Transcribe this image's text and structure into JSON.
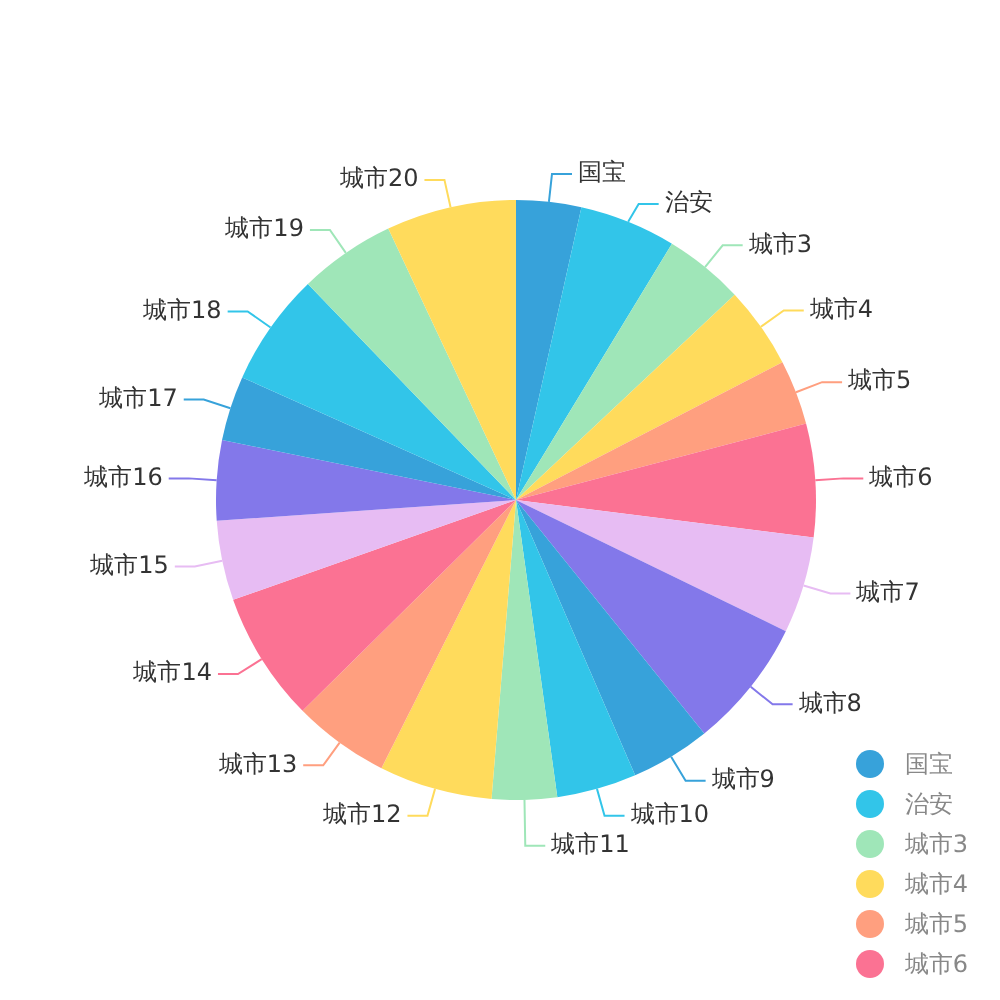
{
  "chart_data": {
    "type": "pie",
    "categories": [
      "国宝",
      "治安",
      "城市3",
      "城市4",
      "城市5",
      "城市6",
      "城市7",
      "城市8",
      "城市9",
      "城市10",
      "城市11",
      "城市12",
      "城市13",
      "城市14",
      "城市15",
      "城市16",
      "城市17",
      "城市18",
      "城市19",
      "城市20"
    ],
    "values": [
      3.5,
      5.2,
      4.3,
      4.4,
      3.5,
      6.1,
      5.2,
      7.0,
      4.3,
      4.3,
      3.5,
      6.1,
      5.2,
      7.0,
      4.3,
      4.3,
      3.5,
      6.1,
      5.2,
      7.0
    ],
    "colors": [
      "#37a2da",
      "#32c5e9",
      "#9fe6b8",
      "#ffdb5c",
      "#ff9f7f",
      "#fb7293",
      "#e7bcf3",
      "#8378ea",
      "#37a2da",
      "#32c5e9",
      "#9fe6b8",
      "#ffdb5c",
      "#ff9f7f",
      "#fb7293",
      "#e7bcf3",
      "#8378ea",
      "#37a2da",
      "#32c5e9",
      "#9fe6b8",
      "#ffdb5c"
    ],
    "legend": "bottom right"
  }
}
